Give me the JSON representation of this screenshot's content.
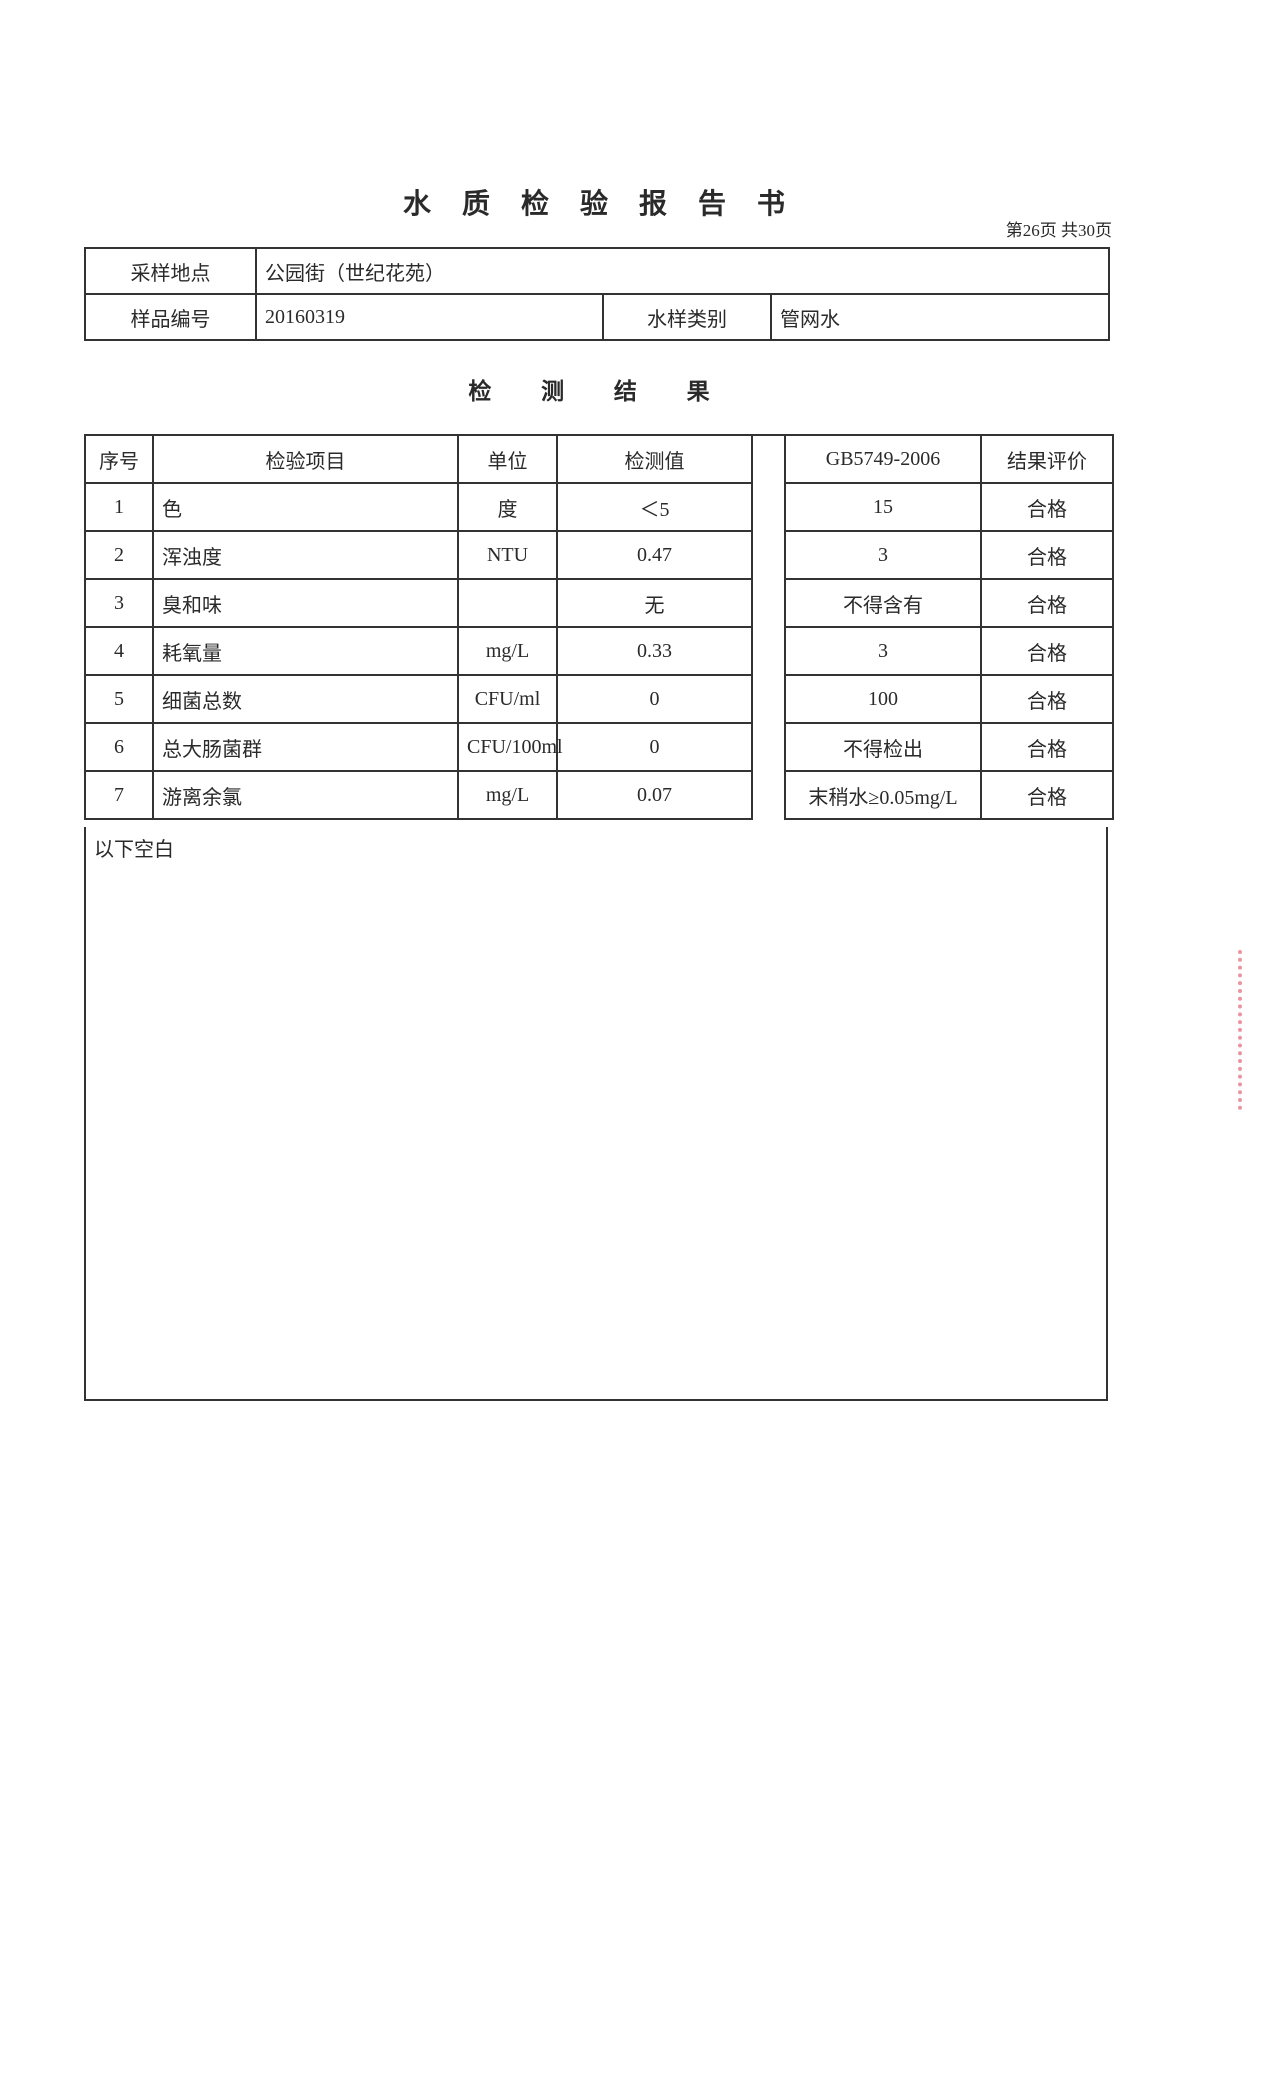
{
  "title": "水 质 检 验 报 告 书",
  "page_number": "第26页 共30页",
  "info": {
    "location_label": "采样地点",
    "location_value": "公园街（世纪花苑）",
    "sample_id_label": "样品编号",
    "sample_id_value": "20160319",
    "water_type_label": "水样类别",
    "water_type_value": "管网水"
  },
  "section_title": "检 测 结 果",
  "results": {
    "headers": [
      "序号",
      "检验项目",
      "单位",
      "检测值",
      "GB5749-2006",
      "结果评价"
    ],
    "rows": [
      [
        "1",
        "色",
        "度",
        "＜5",
        "15",
        "合格"
      ],
      [
        "2",
        "浑浊度",
        "NTU",
        "0.47",
        "3",
        "合格"
      ],
      [
        "3",
        "臭和味",
        "",
        "无",
        "不得含有",
        "合格"
      ],
      [
        "4",
        "耗氧量",
        "mg/L",
        "0.33",
        "3",
        "合格"
      ],
      [
        "5",
        "细菌总数",
        "CFU/ml",
        "0",
        "100",
        "合格"
      ],
      [
        "6",
        "总大肠菌群",
        "CFU/100ml",
        "0",
        "不得检出",
        "合格"
      ],
      [
        "7",
        "游离余氯",
        "mg/L",
        "0.07",
        "末稍水≥0.05mg/L",
        "合格"
      ]
    ],
    "footer_note": "以下空白"
  },
  "stamp_color": "#e26a7a"
}
